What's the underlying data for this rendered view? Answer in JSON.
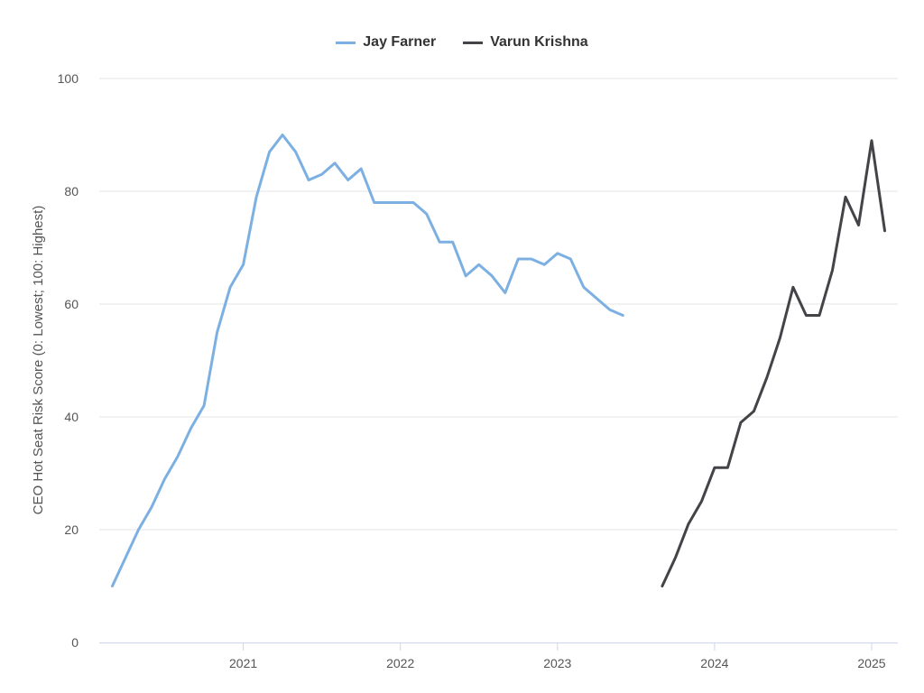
{
  "chart_data": {
    "type": "line",
    "title": "",
    "xlabel": "",
    "ylabel": "CEO Hot Seat Risk Score (0: Lowest; 100: Highest)",
    "ylim": [
      0,
      100
    ],
    "yticks": [
      "0",
      "20",
      "40",
      "60",
      "80",
      "100"
    ],
    "xticks": [
      "2021",
      "2022",
      "2023",
      "2024",
      "2025"
    ],
    "xlim": [
      "2020-02",
      "2025-03"
    ],
    "grid": "horizontal",
    "legend_position": "top-center",
    "series": [
      {
        "name": "Jay Farner",
        "color": "#7cb0e2",
        "points": [
          [
            "2020-03",
            10
          ],
          [
            "2020-04",
            15
          ],
          [
            "2020-05",
            20
          ],
          [
            "2020-06",
            24
          ],
          [
            "2020-07",
            29
          ],
          [
            "2020-08",
            33
          ],
          [
            "2020-09",
            38
          ],
          [
            "2020-10",
            42
          ],
          [
            "2020-11",
            55
          ],
          [
            "2020-12",
            63
          ],
          [
            "2021-01",
            67
          ],
          [
            "2021-02",
            79
          ],
          [
            "2021-03",
            87
          ],
          [
            "2021-04",
            90
          ],
          [
            "2021-05",
            87
          ],
          [
            "2021-06",
            82
          ],
          [
            "2021-07",
            83
          ],
          [
            "2021-08",
            85
          ],
          [
            "2021-09",
            82
          ],
          [
            "2021-10",
            84
          ],
          [
            "2021-11",
            78
          ],
          [
            "2021-12",
            78
          ],
          [
            "2022-01",
            78
          ],
          [
            "2022-02",
            78
          ],
          [
            "2022-03",
            76
          ],
          [
            "2022-04",
            71
          ],
          [
            "2022-05",
            71
          ],
          [
            "2022-06",
            65
          ],
          [
            "2022-07",
            67
          ],
          [
            "2022-08",
            65
          ],
          [
            "2022-09",
            62
          ],
          [
            "2022-10",
            68
          ],
          [
            "2022-11",
            68
          ],
          [
            "2022-12",
            67
          ],
          [
            "2023-01",
            69
          ],
          [
            "2023-02",
            68
          ],
          [
            "2023-03",
            63
          ],
          [
            "2023-04",
            61
          ],
          [
            "2023-05",
            59
          ],
          [
            "2023-06",
            58
          ]
        ]
      },
      {
        "name": "Varun Krishna",
        "color": "#434348",
        "points": [
          [
            "2023-09",
            10
          ],
          [
            "2023-10",
            15
          ],
          [
            "2023-11",
            21
          ],
          [
            "2023-12",
            25
          ],
          [
            "2024-01",
            31
          ],
          [
            "2024-02",
            31
          ],
          [
            "2024-03",
            39
          ],
          [
            "2024-04",
            41
          ],
          [
            "2024-05",
            47
          ],
          [
            "2024-06",
            54
          ],
          [
            "2024-07",
            63
          ],
          [
            "2024-08",
            58
          ],
          [
            "2024-09",
            58
          ],
          [
            "2024-10",
            66
          ],
          [
            "2024-11",
            79
          ],
          [
            "2024-12",
            74
          ],
          [
            "2025-01",
            89
          ],
          [
            "2025-02",
            73
          ]
        ]
      }
    ]
  }
}
